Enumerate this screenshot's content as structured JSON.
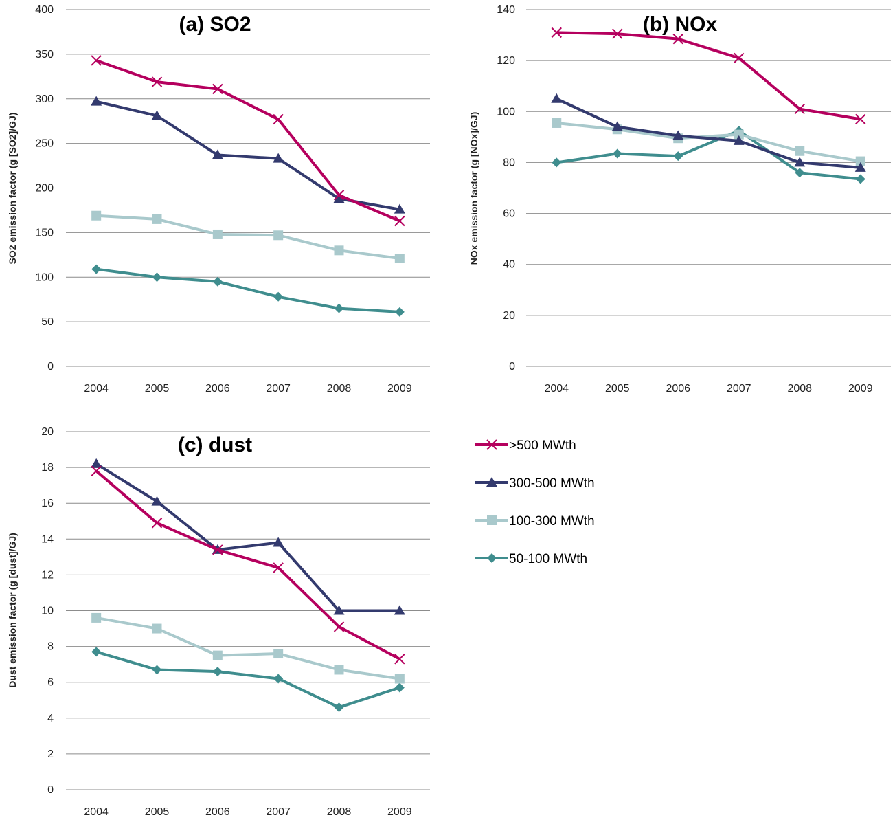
{
  "colors": {
    "gt500": "#b5005e",
    "r300_500": "#333a6e",
    "r100_300": "#a9c9cc",
    "r50_100": "#3f8d8e",
    "grid": "#8c8c8c"
  },
  "legend": {
    "items": [
      {
        "label": ">500 MWth",
        "marker": "x-icon"
      },
      {
        "label": "300-500 MWth",
        "marker": "triangle-icon"
      },
      {
        "label": "100-300 MWth",
        "marker": "square-icon"
      },
      {
        "label": "50-100 MWth",
        "marker": "diamond-icon"
      }
    ]
  },
  "chart_data": [
    {
      "type": "line",
      "title": "(a) SO2",
      "ylabel": "SO2 emission factor (g [SO2]/GJ)",
      "xlabel": "",
      "categories": [
        "2004",
        "2005",
        "2006",
        "2007",
        "2008",
        "2009"
      ],
      "ylim": [
        0,
        400
      ],
      "yticks": [
        0,
        50,
        100,
        150,
        200,
        250,
        300,
        350,
        400
      ],
      "grid": true,
      "series": [
        {
          "name": ">500 MWth",
          "values": [
            343,
            319,
            311,
            277,
            192,
            163
          ]
        },
        {
          "name": "300-500 MWth",
          "values": [
            297,
            281,
            237,
            233,
            188,
            176
          ]
        },
        {
          "name": "100-300 MWth",
          "values": [
            169,
            165,
            148,
            147,
            130,
            121
          ]
        },
        {
          "name": "50-100 MWth",
          "values": [
            109,
            100,
            95,
            78,
            65,
            61
          ]
        }
      ]
    },
    {
      "type": "line",
      "title": "(b) NOx",
      "ylabel": "NOx emission factor (g [NOx]/GJ)",
      "xlabel": "",
      "categories": [
        "2004",
        "2005",
        "2006",
        "2007",
        "2008",
        "2009"
      ],
      "ylim": [
        0,
        140
      ],
      "yticks": [
        0,
        20,
        40,
        60,
        80,
        100,
        120,
        140
      ],
      "grid": true,
      "series": [
        {
          "name": ">500 MWth",
          "values": [
            131,
            130.5,
            128.5,
            121,
            101,
            97
          ]
        },
        {
          "name": "300-500 MWth",
          "values": [
            105,
            94,
            90.5,
            88.5,
            80,
            78
          ]
        },
        {
          "name": "100-300 MWth",
          "values": [
            95.5,
            93,
            89.5,
            91,
            84.5,
            80.5
          ]
        },
        {
          "name": "50-100 MWth",
          "values": [
            80,
            83.5,
            82.5,
            92.5,
            76,
            73.5
          ]
        }
      ]
    },
    {
      "type": "line",
      "title": "(c) dust",
      "ylabel": "Dust emission factor (g [dust]/GJ)",
      "xlabel": "",
      "categories": [
        "2004",
        "2005",
        "2006",
        "2007",
        "2008",
        "2009"
      ],
      "ylim": [
        0,
        20
      ],
      "yticks": [
        0,
        2,
        4,
        6,
        8,
        10,
        12,
        14,
        16,
        18,
        20
      ],
      "grid": true,
      "series": [
        {
          "name": ">500 MWth",
          "values": [
            17.8,
            14.9,
            13.4,
            12.4,
            9.1,
            7.3
          ]
        },
        {
          "name": "300-500 MWth",
          "values": [
            18.2,
            16.1,
            13.4,
            13.8,
            10,
            10
          ]
        },
        {
          "name": "100-300 MWth",
          "values": [
            9.6,
            9,
            7.5,
            7.6,
            6.7,
            6.2
          ]
        },
        {
          "name": "50-100 MWth",
          "values": [
            7.7,
            6.7,
            6.6,
            6.2,
            4.6,
            5.7
          ]
        }
      ]
    }
  ]
}
